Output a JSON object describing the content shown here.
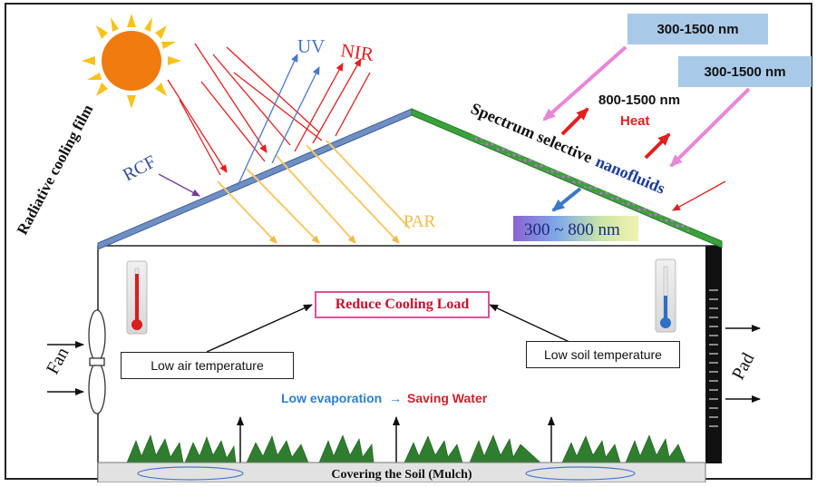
{
  "labels": {
    "radiative_cooling_film": "Radiative cooling film",
    "rcf": "RCF",
    "uv": "UV",
    "nir": "NIR",
    "par": "PAR",
    "range_top": "300-1500 nm",
    "range_right": "300-1500 nm",
    "range_heat": "800-1500 nm",
    "heat": "Heat",
    "spectrum_selective": "Spectrum selective",
    "nanofluids": "nanofluids",
    "range_par": "300 ~ 800 nm",
    "reduce_cooling_load": "Reduce Cooling Load",
    "low_air_temperature": "Low air temperature",
    "low_soil_temperature": "Low soil temperature",
    "low_evaporation": "Low evaporation",
    "saving_water": "Saving Water",
    "fan": "Fan",
    "pad": "Pad",
    "covering_soil": "Covering the Soil (Mulch)"
  },
  "colors": {
    "uv": "#4a78c8",
    "nir": "#e02020",
    "par": "#f5c96a",
    "incoming": "#e886d8",
    "heat": "#e02020",
    "roof_left": "#6f8fc4",
    "roof_right": "#3aa23a",
    "reduce_border": "#e0509a",
    "reduce_text": "#c8102e",
    "evaporation_text": "#2a7fd0",
    "saving_text": "#d0202a"
  }
}
